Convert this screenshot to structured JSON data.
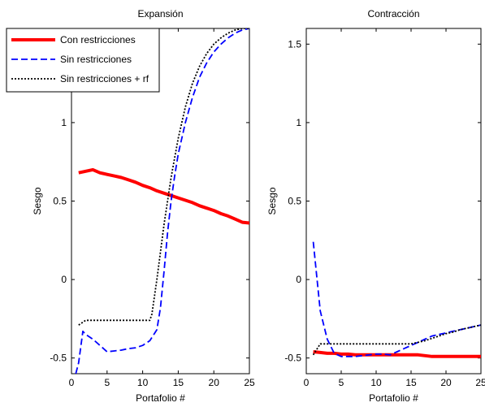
{
  "chart_data": [
    {
      "type": "line",
      "title": "Expansión",
      "xlabel": "Portafolio #",
      "ylabel": "Sesgo",
      "xlim": [
        0,
        25
      ],
      "ylim": [
        -0.6,
        1.6
      ],
      "xticks": [
        0,
        5,
        10,
        15,
        20,
        25
      ],
      "yticks": [
        -0.5,
        0,
        0.5,
        1
      ],
      "legend_position": "top-left",
      "series": [
        {
          "name": "Con restricciones",
          "color": "#ff0000",
          "style": "solid",
          "x": [
            1,
            2,
            3,
            4,
            5,
            6,
            7,
            8,
            9,
            10,
            11,
            12,
            13,
            14,
            15,
            16,
            17,
            18,
            19,
            20,
            21,
            22,
            23,
            24,
            25
          ],
          "y": [
            0.68,
            0.69,
            0.7,
            0.68,
            0.67,
            0.66,
            0.65,
            0.635,
            0.62,
            0.6,
            0.585,
            0.565,
            0.55,
            0.535,
            0.52,
            0.505,
            0.49,
            0.47,
            0.455,
            0.44,
            0.42,
            0.405,
            0.385,
            0.365,
            0.36
          ]
        },
        {
          "name": "Sin restricciones",
          "color": "#0000ff",
          "style": "dashed",
          "x": [
            0.6,
            1,
            1.6,
            2,
            3,
            4,
            5,
            6,
            7,
            8,
            9,
            10,
            11,
            12,
            12.5,
            13,
            13.5,
            14,
            14.5,
            15,
            16,
            17,
            18,
            19,
            20,
            21,
            22,
            23,
            24,
            25
          ],
          "y": [
            -0.6,
            -0.53,
            -0.33,
            -0.35,
            -0.38,
            -0.42,
            -0.46,
            -0.455,
            -0.45,
            -0.44,
            -0.435,
            -0.42,
            -0.39,
            -0.32,
            -0.18,
            0.05,
            0.3,
            0.5,
            0.66,
            0.8,
            1.0,
            1.16,
            1.29,
            1.38,
            1.45,
            1.5,
            1.54,
            1.57,
            1.59,
            1.6
          ]
        },
        {
          "name": "Sin restricciones + rf",
          "color": "#000000",
          "style": "dotted",
          "x": [
            1,
            2,
            3,
            4,
            5,
            6,
            7,
            8,
            9,
            10,
            11,
            11.3,
            12,
            13,
            14,
            15,
            16,
            17,
            18,
            19,
            20,
            21,
            22,
            23,
            24,
            25
          ],
          "y": [
            -0.29,
            -0.26,
            -0.26,
            -0.26,
            -0.26,
            -0.26,
            -0.26,
            -0.26,
            -0.26,
            -0.26,
            -0.26,
            -0.22,
            0.0,
            0.35,
            0.65,
            0.9,
            1.1,
            1.25,
            1.36,
            1.44,
            1.5,
            1.54,
            1.57,
            1.59,
            1.6,
            1.6
          ]
        }
      ]
    },
    {
      "type": "line",
      "title": "Contracción",
      "xlabel": "Portafolio #",
      "ylabel": "Sesgo",
      "xlim": [
        0,
        25
      ],
      "ylim": [
        -0.6,
        1.6
      ],
      "xticks": [
        0,
        5,
        10,
        15,
        20,
        25
      ],
      "yticks": [
        -0.5,
        0,
        0.5,
        1,
        1.5
      ],
      "series": [
        {
          "name": "Con restricciones",
          "color": "#ff0000",
          "style": "solid",
          "x": [
            1,
            2,
            3,
            4,
            5,
            6,
            7,
            8,
            9,
            10,
            11,
            12,
            13,
            14,
            15,
            16,
            17,
            18,
            19,
            20,
            21,
            22,
            23,
            24,
            25
          ],
          "y": [
            -0.46,
            -0.465,
            -0.47,
            -0.47,
            -0.475,
            -0.475,
            -0.48,
            -0.48,
            -0.48,
            -0.48,
            -0.48,
            -0.48,
            -0.48,
            -0.48,
            -0.48,
            -0.48,
            -0.485,
            -0.49,
            -0.49,
            -0.49,
            -0.49,
            -0.49,
            -0.49,
            -0.49,
            -0.49
          ]
        },
        {
          "name": "Sin restricciones",
          "color": "#0000ff",
          "style": "dashed",
          "x": [
            1,
            2,
            3,
            4,
            5,
            6,
            7,
            8,
            9,
            10,
            11,
            12,
            13,
            14,
            15,
            16,
            17,
            18,
            19,
            20,
            21,
            22,
            23,
            24,
            25
          ],
          "y": [
            0.24,
            -0.2,
            -0.38,
            -0.47,
            -0.49,
            -0.49,
            -0.49,
            -0.485,
            -0.48,
            -0.475,
            -0.475,
            -0.48,
            -0.46,
            -0.44,
            -0.42,
            -0.4,
            -0.38,
            -0.36,
            -0.35,
            -0.34,
            -0.33,
            -0.32,
            -0.31,
            -0.3,
            -0.29
          ]
        },
        {
          "name": "Sin restricciones + rf",
          "color": "#000000",
          "style": "dotted",
          "x": [
            1,
            2,
            3,
            4,
            5,
            6,
            7,
            8,
            9,
            10,
            11,
            12,
            13,
            14,
            15,
            16,
            17,
            18,
            19,
            20,
            21,
            22,
            23,
            24,
            25
          ],
          "y": [
            -0.48,
            -0.41,
            -0.41,
            -0.41,
            -0.41,
            -0.41,
            -0.41,
            -0.41,
            -0.41,
            -0.41,
            -0.41,
            -0.41,
            -0.41,
            -0.41,
            -0.41,
            -0.4,
            -0.39,
            -0.375,
            -0.36,
            -0.345,
            -0.335,
            -0.32,
            -0.31,
            -0.3,
            -0.29
          ]
        }
      ]
    }
  ]
}
